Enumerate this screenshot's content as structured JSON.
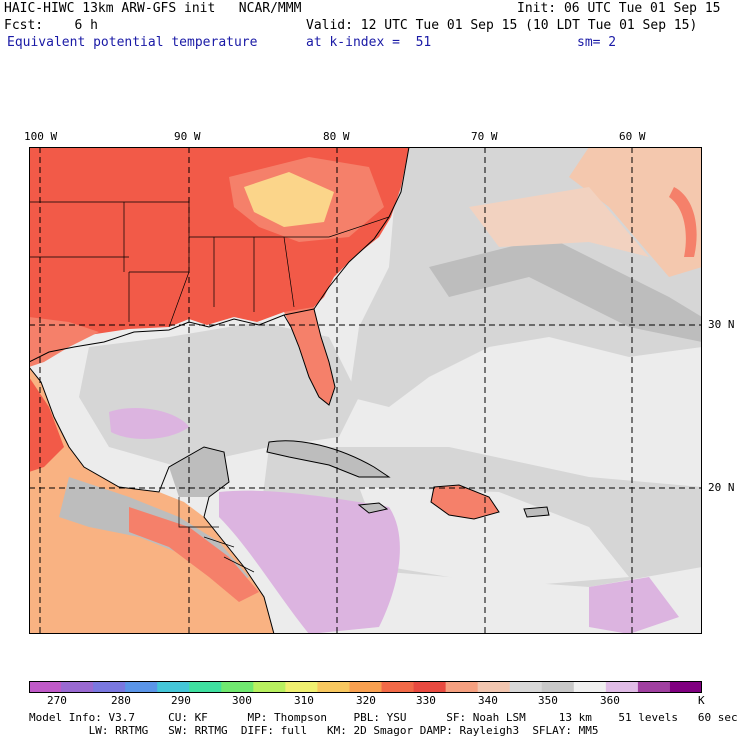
{
  "header": {
    "line1_left": "HAIC-HIWC 13km ARW-GFS init   NCAR/MMM",
    "line1_right": "Init: 06 UTC Tue 01 Sep 15",
    "line2_left": "Fcst:    6 h",
    "line2_right": "Valid: 12 UTC Tue 01 Sep 15 (10 LDT Tue 01 Sep 15)",
    "line3_left": "Equivalent potential temperature",
    "line3_mid": "at k-index =  51",
    "line3_right": "sm= 2"
  },
  "map": {
    "lon_labels": [
      "100 W",
      "90 W",
      "80 W",
      "70 W",
      "60 W"
    ],
    "lat_labels": [
      "30 N",
      "20 N"
    ],
    "colors": {
      "hot": "#f25a48",
      "warm": "#f5806a",
      "orange": "#f9b282",
      "peach": "#f4c8ae",
      "lightgray": "#d6d6d6",
      "gray": "#bdbdbd",
      "whitegray": "#ececec",
      "lavender": "#dcb4e0",
      "yellow": "#fbd58a",
      "coast": "#000000"
    }
  },
  "colorbar": {
    "labels": [
      "270",
      "280",
      "290",
      "300",
      "310",
      "320",
      "330",
      "340",
      "350",
      "360",
      "K"
    ],
    "colors": [
      "#c05ac8",
      "#9a6ad2",
      "#7a78e0",
      "#5b95e8",
      "#45c6d8",
      "#3fe0a0",
      "#70e870",
      "#b8f060",
      "#f0f070",
      "#f8c860",
      "#f8a050",
      "#f26a48",
      "#e84a40",
      "#f5a080",
      "#f2c6b0",
      "#d8d8d8",
      "#c8c8c8",
      "#f0f0f0",
      "#e0bce6",
      "#a040a0",
      "#800080"
    ]
  },
  "footer": {
    "line1": "Model Info: V3.7     CU: KF      MP: Thompson    PBL: YSU      SF: Noah LSM     13 km    51 levels   60 sec",
    "line2": "         LW: RRTMG   SW: RRTMG  DIFF: full   KM: 2D Smagor DAMP: Rayleigh3  SFLAY: MM5"
  }
}
